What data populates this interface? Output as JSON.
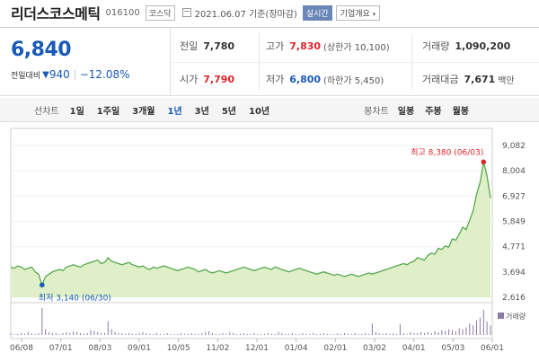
{
  "header": {
    "stock_name": "리더스코스메틱",
    "stock_code": "016100",
    "market": "코스닥",
    "date": "2021.06.07 기준(장마감)",
    "realtime_label": "실시간",
    "overview_label": "기업개요",
    "overview_caret": "▾"
  },
  "quote": {
    "price": "6,840",
    "change_label": "전일대비",
    "change_arrow": "▼",
    "change": "940",
    "change_pct": "−12.08%",
    "prev_close_label": "전일",
    "prev_close": "7,780",
    "high_label": "고가",
    "high": "7,830",
    "upper_limit": "(상한가 10,100)",
    "volume_label": "거래량",
    "volume": "1,090,200",
    "open_label": "시가",
    "open": "7,790",
    "low_label": "저가",
    "low": "6,800",
    "lower_limit": "(하한가 5,450)",
    "trade_value_label": "거래대금",
    "trade_value": "7,671",
    "trade_value_unit": "백만"
  },
  "periods": {
    "label": "선차트",
    "items": [
      "1일",
      "1주일",
      "3개월",
      "1년",
      "3년",
      "5년",
      "10년"
    ],
    "active": "1년",
    "bar_label": "봉차트",
    "bar_items": [
      "일봉",
      "주봉",
      "월봉"
    ]
  },
  "colors": {
    "up": "#e0242a",
    "down": "#1a5ab7",
    "line": "#57a84f",
    "area": "#dff0c8"
  },
  "chart_data": {
    "type": "area",
    "x_ticks": [
      "06/08",
      "07/01",
      "08/03",
      "09/01",
      "10/05",
      "11/02",
      "12/01",
      "01/04",
      "02/01",
      "03/02",
      "04/01",
      "05/03",
      "06/01"
    ],
    "y_ticks": [
      "2,616",
      "3,694",
      "4,771",
      "5,849",
      "6,927",
      "8,004",
      "9,082"
    ],
    "ylim": [
      2616,
      9082
    ],
    "values": [
      3900,
      3850,
      3950,
      3900,
      3800,
      3850,
      3900,
      3700,
      3600,
      3140,
      3500,
      3600,
      3700,
      3750,
      3800,
      3750,
      3900,
      3950,
      4000,
      3950,
      3900,
      4000,
      4050,
      4100,
      4150,
      4200,
      4050,
      4100,
      4300,
      4150,
      4100,
      4050,
      4000,
      4050,
      4100,
      4000,
      3950,
      3900,
      3950,
      3850,
      3800,
      3900,
      3850,
      3900,
      3950,
      3900,
      3850,
      3800,
      3750,
      3800,
      3850,
      3900,
      3850,
      3800,
      3700,
      3750,
      3800,
      3700,
      3650,
      3700,
      3750,
      3700,
      3650,
      3700,
      3750,
      3800,
      3850,
      3900,
      3850,
      3800,
      3750,
      3800,
      3850,
      3900,
      3850,
      3800,
      3900,
      3850,
      3800,
      3750,
      3700,
      3750,
      3800,
      3850,
      3800,
      3750,
      3700,
      3650,
      3600,
      3650,
      3700,
      3650,
      3600,
      3550,
      3600,
      3550,
      3500,
      3550,
      3600,
      3550,
      3500,
      3550,
      3600,
      3650,
      3600,
      3650,
      3700,
      3750,
      3800,
      3850,
      3900,
      3950,
      4000,
      4050,
      4000,
      4100,
      4150,
      4300,
      4250,
      4200,
      4400,
      4500,
      4450,
      4700,
      4650,
      4800,
      4750,
      5100,
      5050,
      5300,
      5600,
      5500,
      5900,
      6300,
      7000,
      7500,
      8380,
      7800,
      6840
    ],
    "high_annotation": {
      "label": "최고",
      "value": "8,380",
      "date": "(06/03)"
    },
    "low_annotation": {
      "label": "최저",
      "value": "3,140",
      "date": "(06/30)"
    },
    "volume_label": "거래량",
    "volume": [
      2,
      1,
      1,
      2,
      1,
      3,
      2,
      1,
      2,
      28,
      6,
      3,
      2,
      2,
      1,
      2,
      3,
      2,
      4,
      3,
      2,
      1,
      2,
      5,
      4,
      3,
      2,
      2,
      14,
      6,
      3,
      2,
      2,
      1,
      2,
      1,
      1,
      2,
      3,
      2,
      1,
      1,
      2,
      1,
      1,
      2,
      1,
      1,
      1,
      2,
      1,
      1,
      2,
      1,
      1,
      2,
      3,
      4,
      2,
      1,
      1,
      2,
      1,
      3,
      2,
      1,
      1,
      2,
      1,
      1,
      2,
      1,
      1,
      1,
      2,
      1,
      1,
      3,
      2,
      1,
      1,
      2,
      1,
      1,
      2,
      1,
      1,
      2,
      1,
      1,
      2,
      1,
      1,
      1,
      2,
      1,
      2,
      1,
      1,
      2,
      1,
      1,
      2,
      1,
      12,
      3,
      2,
      1,
      2,
      1,
      2,
      1,
      11,
      2,
      1,
      3,
      2,
      2,
      3,
      2,
      3,
      2,
      4,
      3,
      5,
      4,
      6,
      5,
      4,
      7,
      6,
      8,
      12,
      10,
      15,
      18,
      26,
      14,
      10
    ]
  }
}
